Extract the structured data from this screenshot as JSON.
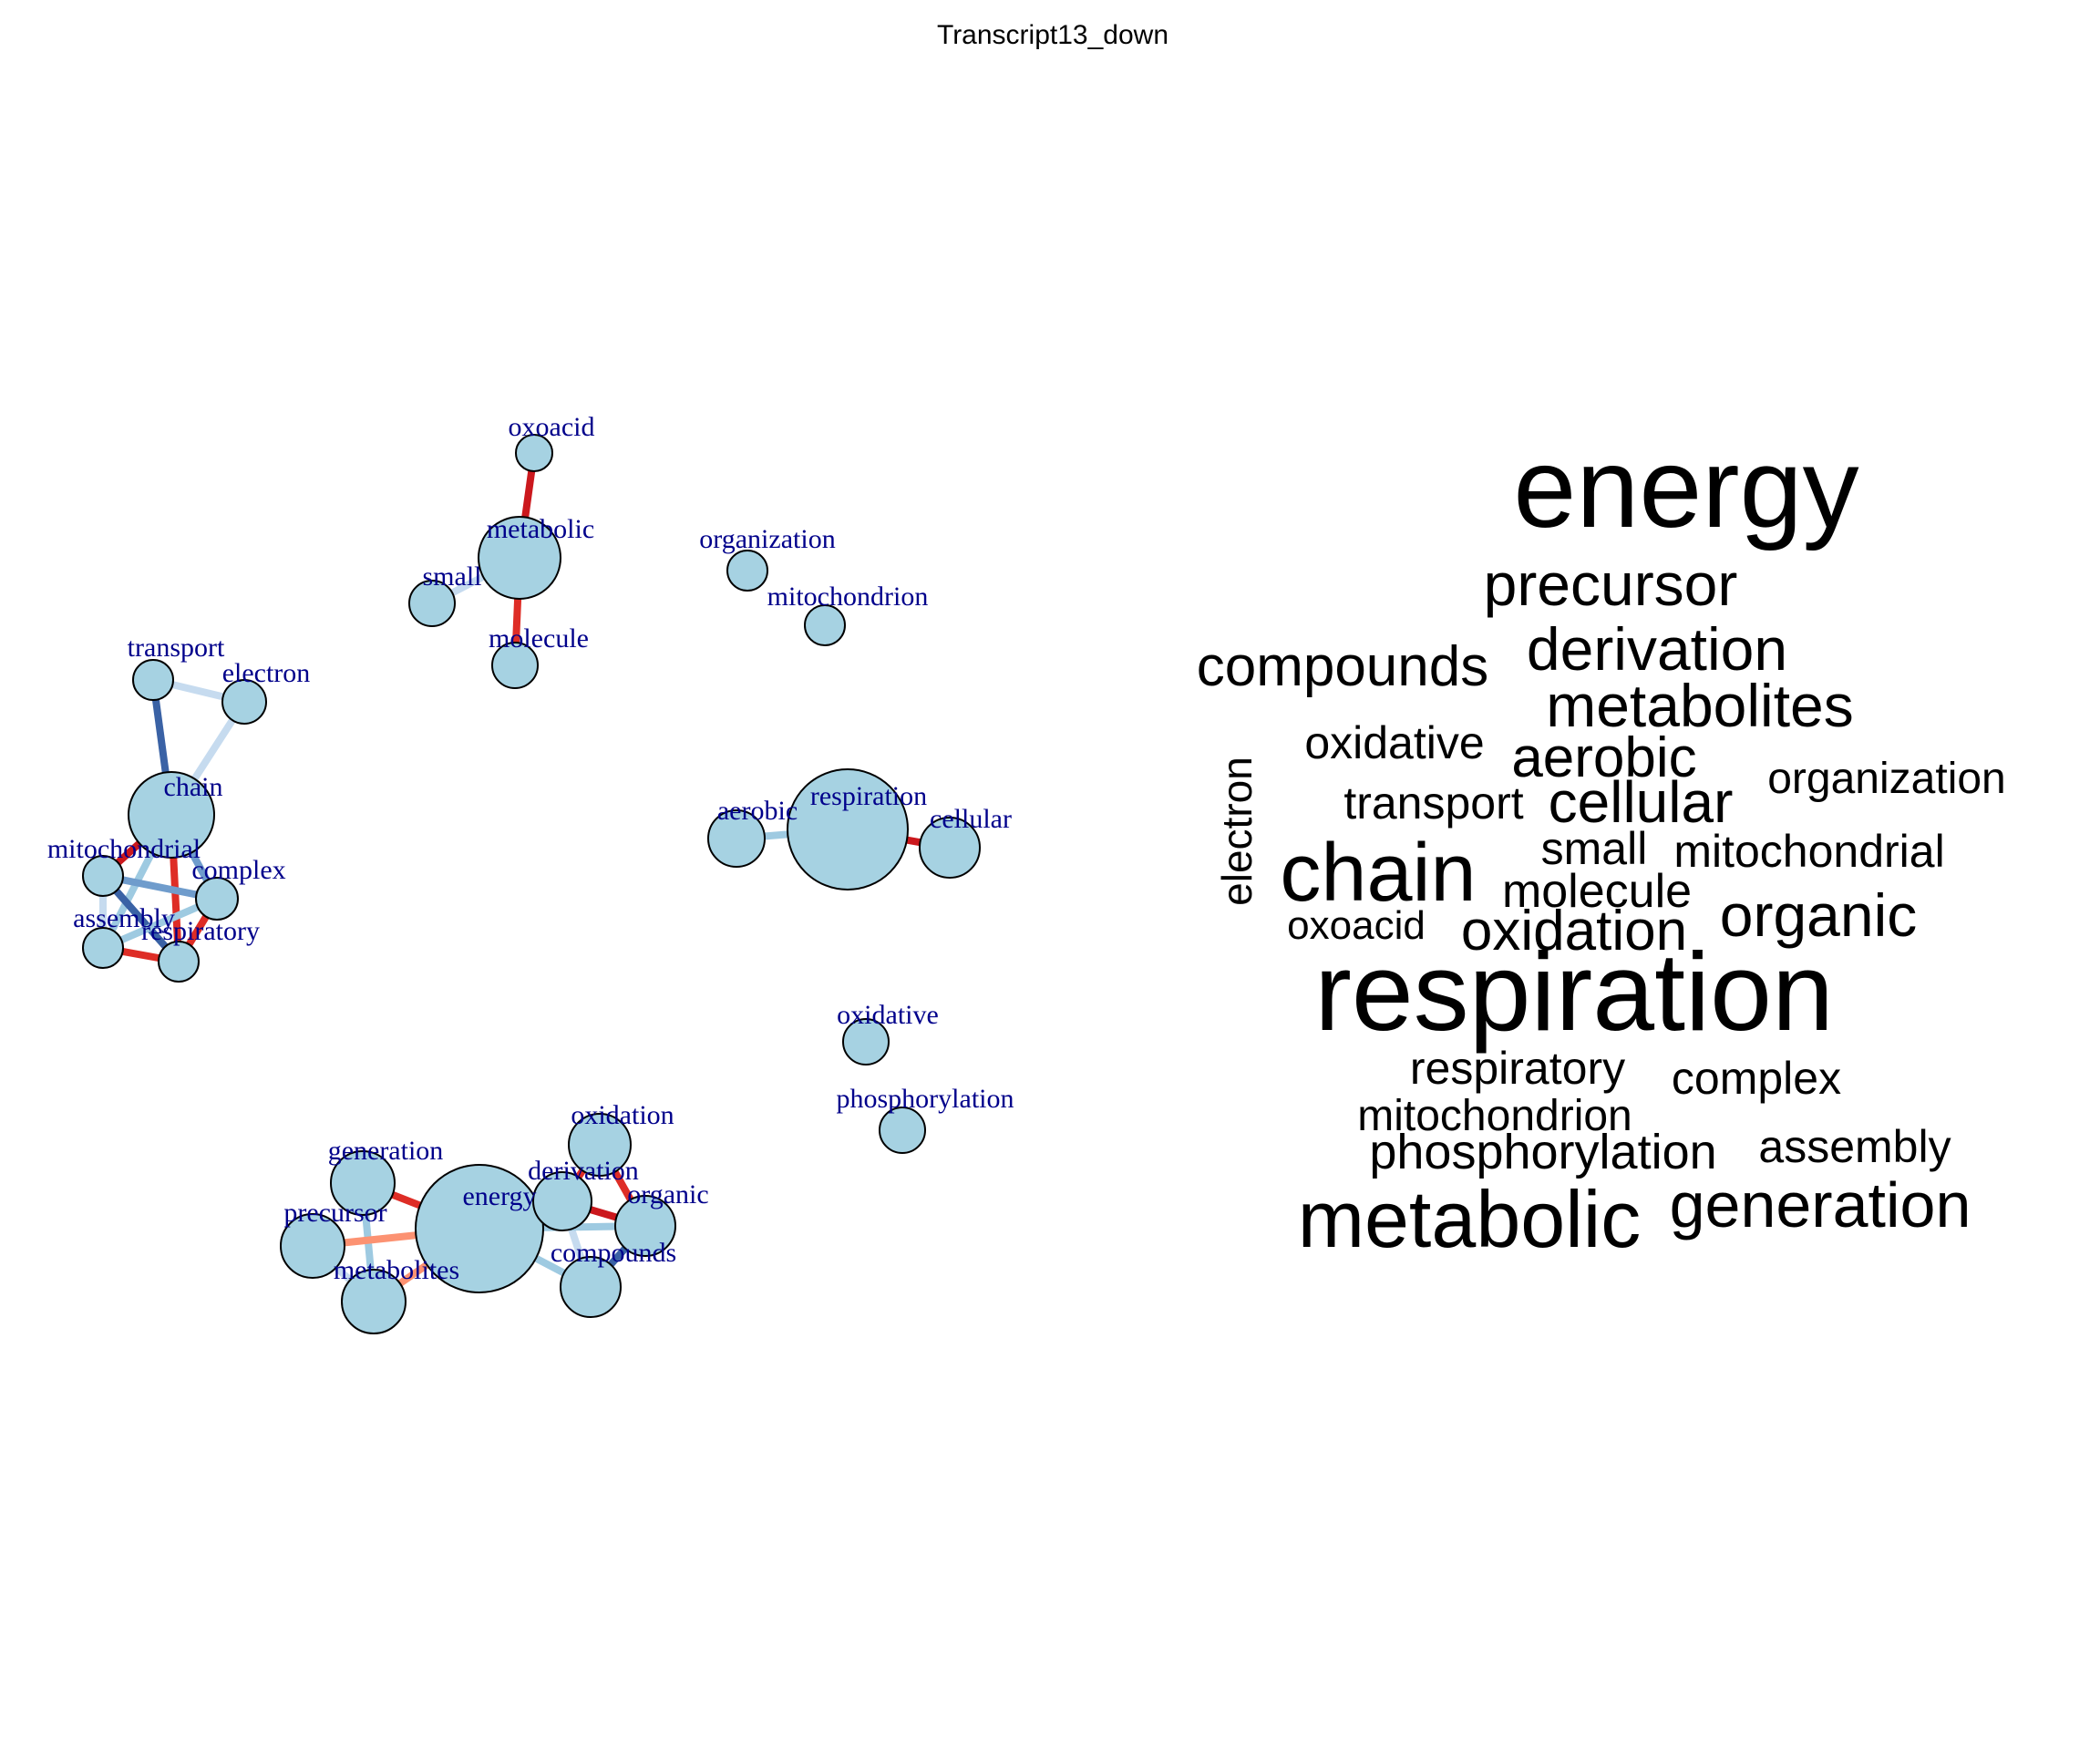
{
  "title": "Transcript13_down",
  "network": {
    "nodes": [
      {
        "id": "oxoacid",
        "label": "oxoacid"
      },
      {
        "id": "metabolic",
        "label": "metabolic"
      },
      {
        "id": "small",
        "label": "small"
      },
      {
        "id": "molecule",
        "label": "molecule"
      },
      {
        "id": "organization",
        "label": "organization"
      },
      {
        "id": "mitochondrion",
        "label": "mitochondrion"
      },
      {
        "id": "transport",
        "label": "transport"
      },
      {
        "id": "electron",
        "label": "electron"
      },
      {
        "id": "chain",
        "label": "chain"
      },
      {
        "id": "mitochondrial",
        "label": "mitochondrial"
      },
      {
        "id": "complex",
        "label": "complex"
      },
      {
        "id": "assembly",
        "label": "assembly"
      },
      {
        "id": "respiratory",
        "label": "respiratory"
      },
      {
        "id": "aerobic",
        "label": "aerobic"
      },
      {
        "id": "respiration",
        "label": "respiration"
      },
      {
        "id": "cellular",
        "label": "cellular"
      },
      {
        "id": "oxidative",
        "label": "oxidative"
      },
      {
        "id": "phosphorylation",
        "label": "phosphorylation"
      },
      {
        "id": "generation",
        "label": "generation"
      },
      {
        "id": "precursor",
        "label": "precursor"
      },
      {
        "id": "metabolites",
        "label": "metabolites"
      },
      {
        "id": "energy",
        "label": "energy"
      },
      {
        "id": "derivation",
        "label": "derivation"
      },
      {
        "id": "oxidation",
        "label": "oxidation"
      },
      {
        "id": "organic",
        "label": "organic"
      },
      {
        "id": "compounds",
        "label": "compounds"
      }
    ],
    "edges": [
      {
        "from": "metabolic",
        "to": "oxoacid",
        "color": "#cb181d"
      },
      {
        "from": "metabolic",
        "to": "small",
        "color": "#c6dbef"
      },
      {
        "from": "metabolic",
        "to": "molecule",
        "color": "#de2d26"
      },
      {
        "from": "transport",
        "to": "electron",
        "color": "#c6dbef"
      },
      {
        "from": "transport",
        "to": "chain",
        "color": "#3a62a5"
      },
      {
        "from": "electron",
        "to": "chain",
        "color": "#c6dbef"
      },
      {
        "from": "chain",
        "to": "mitochondrial",
        "color": "#cb181d"
      },
      {
        "from": "chain",
        "to": "complex",
        "color": "#6f9ccc"
      },
      {
        "from": "chain",
        "to": "assembly",
        "color": "#9ecae1"
      },
      {
        "from": "chain",
        "to": "respiratory",
        "color": "#de2d26"
      },
      {
        "from": "mitochondrial",
        "to": "complex",
        "color": "#6f9ccc"
      },
      {
        "from": "mitochondrial",
        "to": "assembly",
        "color": "#c6dbef"
      },
      {
        "from": "mitochondrial",
        "to": "respiratory",
        "color": "#3a62a5"
      },
      {
        "from": "complex",
        "to": "assembly",
        "color": "#9ecae1"
      },
      {
        "from": "complex",
        "to": "respiratory",
        "color": "#de2d26"
      },
      {
        "from": "assembly",
        "to": "respiratory",
        "color": "#de2d26"
      },
      {
        "from": "aerobic",
        "to": "respiration",
        "color": "#9ecae1"
      },
      {
        "from": "respiration",
        "to": "cellular",
        "color": "#cb181d"
      },
      {
        "from": "generation",
        "to": "energy",
        "color": "#de2d26"
      },
      {
        "from": "generation",
        "to": "metabolites",
        "color": "#9ecae1"
      },
      {
        "from": "precursor",
        "to": "energy",
        "color": "#fc9272"
      },
      {
        "from": "precursor",
        "to": "metabolites",
        "color": "#c6dbef"
      },
      {
        "from": "metabolites",
        "to": "energy",
        "color": "#fc9272"
      },
      {
        "from": "energy",
        "to": "derivation",
        "color": "#de2d26"
      },
      {
        "from": "energy",
        "to": "compounds",
        "color": "#9ecae1"
      },
      {
        "from": "derivation",
        "to": "oxidation",
        "color": "#de2d26"
      },
      {
        "from": "derivation",
        "to": "organic",
        "color": "#cb181d"
      },
      {
        "from": "derivation",
        "to": "compounds",
        "color": "#c6dbef"
      },
      {
        "from": "oxidation",
        "to": "organic",
        "color": "#de2d26"
      },
      {
        "from": "organic",
        "to": "compounds",
        "color": "#3a62a5"
      },
      {
        "from": "energy",
        "to": "organic",
        "color": "#9ecae1"
      }
    ],
    "node_fill": "#a6d2e2",
    "node_stroke": "#000000",
    "label_color": "#00008b"
  },
  "word_cloud": {
    "words": [
      {
        "text": "energy",
        "weight": 10
      },
      {
        "text": "precursor",
        "weight": 5
      },
      {
        "text": "compounds",
        "weight": 5
      },
      {
        "text": "derivation",
        "weight": 5
      },
      {
        "text": "metabolites",
        "weight": 5
      },
      {
        "text": "oxidative",
        "weight": 4
      },
      {
        "text": "aerobic",
        "weight": 5
      },
      {
        "text": "organization",
        "weight": 4
      },
      {
        "text": "electron",
        "weight": 4
      },
      {
        "text": "transport",
        "weight": 4
      },
      {
        "text": "cellular",
        "weight": 5
      },
      {
        "text": "small",
        "weight": 4
      },
      {
        "text": "mitochondrial",
        "weight": 4
      },
      {
        "text": "chain",
        "weight": 7
      },
      {
        "text": "molecule",
        "weight": 4
      },
      {
        "text": "organic",
        "weight": 5
      },
      {
        "text": "oxoacid",
        "weight": 3
      },
      {
        "text": "oxidation",
        "weight": 5
      },
      {
        "text": "respiration",
        "weight": 10
      },
      {
        "text": "respiratory",
        "weight": 4
      },
      {
        "text": "complex",
        "weight": 4
      },
      {
        "text": "mitochondrion",
        "weight": 4
      },
      {
        "text": "phosphorylation",
        "weight": 4
      },
      {
        "text": "assembly",
        "weight": 4
      },
      {
        "text": "metabolic",
        "weight": 7
      },
      {
        "text": "generation",
        "weight": 6
      }
    ]
  }
}
